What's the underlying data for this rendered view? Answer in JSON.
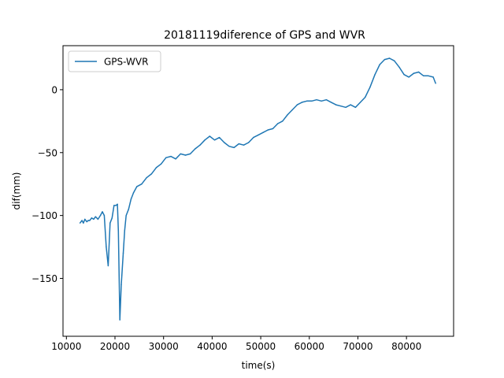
{
  "chart_data": {
    "type": "line",
    "title": "20181119diference of GPS and WVR",
    "xlabel": "time(s)",
    "ylabel": "dif(mm)",
    "xlim": [
      9300,
      89700
    ],
    "ylim": [
      -196,
      35
    ],
    "xticks": [
      10000,
      20000,
      30000,
      40000,
      50000,
      60000,
      70000,
      80000
    ],
    "xtick_labels": [
      "10000",
      "20000",
      "30000",
      "40000",
      "50000",
      "60000",
      "70000",
      "80000"
    ],
    "yticks": [
      -150,
      -100,
      -50,
      0
    ],
    "ytick_labels": [
      "−150",
      "−100",
      "−50",
      "0"
    ],
    "grid": false,
    "legend": {
      "position": "top-left"
    },
    "series": [
      {
        "name": "GPS-WVR",
        "color": "#1f77b4",
        "x": [
          12800,
          13200,
          13500,
          13800,
          14200,
          14500,
          14800,
          15200,
          15600,
          16000,
          16500,
          17000,
          17400,
          17800,
          18200,
          18600,
          19000,
          19400,
          19800,
          20200,
          20500,
          20700,
          21000,
          21300,
          21700,
          22000,
          22300,
          22800,
          23300,
          23800,
          24500,
          25500,
          26500,
          27500,
          28500,
          29500,
          30500,
          31500,
          32500,
          33500,
          34500,
          35500,
          36500,
          37500,
          38500,
          39500,
          40500,
          41500,
          42500,
          43500,
          44500,
          45500,
          46500,
          47500,
          48500,
          49500,
          50500,
          51500,
          52500,
          53500,
          54500,
          55500,
          56500,
          57500,
          58500,
          59500,
          60500,
          61500,
          62500,
          63500,
          64500,
          65500,
          66500,
          67500,
          68500,
          69500,
          70500,
          71500,
          72500,
          73500,
          74500,
          75500,
          76500,
          77500,
          78500,
          79500,
          80500,
          81500,
          82500,
          83500,
          84500,
          85500,
          86000
        ],
        "y": [
          -106,
          -104,
          -106,
          -103,
          -105,
          -104,
          -104,
          -102,
          -103,
          -101,
          -103,
          -100,
          -97,
          -100,
          -125,
          -140,
          -106,
          -102,
          -92,
          -92,
          -91,
          -112,
          -183,
          -155,
          -130,
          -112,
          -100,
          -95,
          -87,
          -82,
          -77,
          -75,
          -70,
          -67,
          -62,
          -59,
          -54,
          -53,
          -55,
          -51,
          -52,
          -51,
          -47,
          -44,
          -40,
          -37,
          -40,
          -38,
          -42,
          -45,
          -46,
          -43,
          -44,
          -42,
          -38,
          -36,
          -34,
          -32,
          -31,
          -27,
          -25,
          -20,
          -16,
          -12,
          -10,
          -9,
          -9,
          -8,
          -9,
          -8,
          -10,
          -12,
          -13,
          -14,
          -12,
          -14,
          -10,
          -6,
          2,
          12,
          20,
          24,
          25,
          23,
          18,
          12,
          10,
          13,
          14,
          11,
          11,
          10,
          5
        ]
      }
    ]
  }
}
